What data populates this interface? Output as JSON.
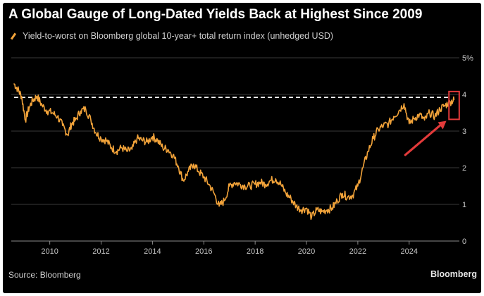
{
  "title": "A Global Gauge of Long-Dated Yields Back at Highest Since 2009",
  "legend": {
    "label": "Yield-to-worst on Bloomberg global 10-year+ total return index (unhedged USD)"
  },
  "source": "Source: Bloomberg",
  "brand": "Bloomberg",
  "colors": {
    "background": "#000000",
    "line": "#f2a33a",
    "reference": "#ffffff",
    "highlight": "#e23a3a",
    "grid": "#3a3a3a",
    "axis": "#8a8a8a"
  },
  "chart_data": {
    "type": "line",
    "title": "A Global Gauge of Long-Dated Yields Back at Highest Since 2009",
    "xlabel": "",
    "ylabel": "",
    "xlim": [
      2008.5,
      2025.9
    ],
    "ylim": [
      0,
      5
    ],
    "x_ticks": [
      "2010",
      "2012",
      "2014",
      "2016",
      "2018",
      "2020",
      "2022",
      "2024"
    ],
    "y_ticks": [
      "0",
      "1",
      "2",
      "3",
      "4",
      "5%"
    ],
    "reference_line": {
      "y": 3.92,
      "style": "dashed"
    },
    "series": [
      {
        "name": "Yield-to-worst on Bloomberg global 10-year+ total return index (unhedged USD)",
        "x": [
          2008.6,
          2008.75,
          2008.9,
          2009.05,
          2009.2,
          2009.35,
          2009.5,
          2009.7,
          2009.9,
          2010.1,
          2010.3,
          2010.5,
          2010.7,
          2010.85,
          2011.0,
          2011.2,
          2011.4,
          2011.6,
          2011.8,
          2012.0,
          2012.2,
          2012.4,
          2012.6,
          2012.8,
          2013.0,
          2013.2,
          2013.4,
          2013.6,
          2013.8,
          2014.0,
          2014.2,
          2014.4,
          2014.6,
          2014.8,
          2015.0,
          2015.2,
          2015.4,
          2015.6,
          2015.8,
          2016.0,
          2016.2,
          2016.4,
          2016.6,
          2016.8,
          2017.0,
          2017.2,
          2017.4,
          2017.6,
          2017.8,
          2018.0,
          2018.2,
          2018.4,
          2018.6,
          2018.8,
          2019.0,
          2019.2,
          2019.4,
          2019.6,
          2019.8,
          2020.0,
          2020.2,
          2020.4,
          2020.6,
          2020.8,
          2021.0,
          2021.2,
          2021.4,
          2021.6,
          2021.8,
          2022.0,
          2022.2,
          2022.4,
          2022.6,
          2022.8,
          2023.0,
          2023.2,
          2023.4,
          2023.6,
          2023.8,
          2024.0,
          2024.2,
          2024.4,
          2024.6,
          2024.8,
          2025.0,
          2025.2,
          2025.4,
          2025.6,
          2025.75
        ],
        "values": [
          4.3,
          4.15,
          3.95,
          3.3,
          3.65,
          3.85,
          3.95,
          3.7,
          3.55,
          3.5,
          3.4,
          3.15,
          2.9,
          3.2,
          3.3,
          3.55,
          3.6,
          3.3,
          2.95,
          2.8,
          2.75,
          2.55,
          2.45,
          2.55,
          2.45,
          2.5,
          2.8,
          2.75,
          2.7,
          2.85,
          2.75,
          2.55,
          2.5,
          2.35,
          2.05,
          1.65,
          1.9,
          2.1,
          1.9,
          1.75,
          1.55,
          1.3,
          0.95,
          1.1,
          1.5,
          1.6,
          1.55,
          1.5,
          1.5,
          1.55,
          1.6,
          1.55,
          1.65,
          1.7,
          1.55,
          1.3,
          1.15,
          0.95,
          0.85,
          0.9,
          0.65,
          0.85,
          0.8,
          0.85,
          0.9,
          1.1,
          1.3,
          1.2,
          1.25,
          1.5,
          2.0,
          2.45,
          2.8,
          3.05,
          3.15,
          3.2,
          3.4,
          3.55,
          3.75,
          3.2,
          3.35,
          3.45,
          3.3,
          3.5,
          3.4,
          3.6,
          3.7,
          3.8,
          3.85
        ]
      }
    ]
  }
}
